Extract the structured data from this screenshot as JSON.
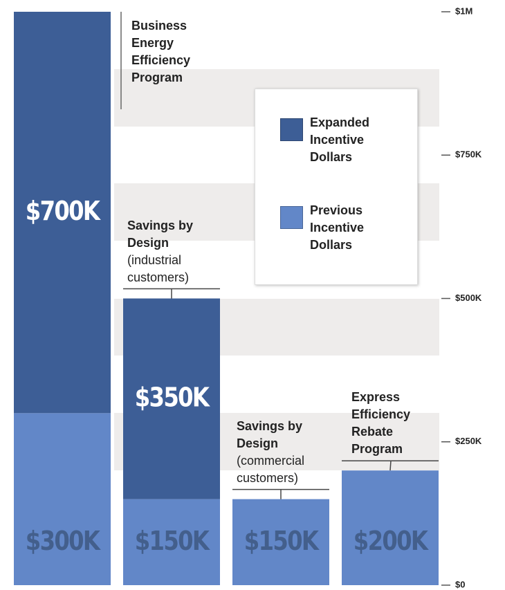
{
  "chart_data": {
    "type": "stacked-bar",
    "categories": [
      "Business Energy Efficiency Program",
      "Savings by Design",
      "Savings by Design",
      "Express Efficiency Rebate Program"
    ],
    "category_notes": [
      null,
      "(industrial customers)",
      "(commercial customers)",
      null
    ],
    "series": [
      {
        "name": "Previous Incentive Dollars",
        "color": "#6287c8",
        "values": [
          300000,
          150000,
          150000,
          200000
        ],
        "value_labels": [
          "$300K",
          "$150K",
          "$150K",
          "$200K"
        ]
      },
      {
        "name": "Expanded Incentive Dollars",
        "color": "#3d5e96",
        "values": [
          700000,
          350000,
          null,
          null
        ],
        "value_labels": [
          "$700K",
          "$350K",
          null,
          null
        ]
      }
    ],
    "ylim": [
      0,
      1000000
    ],
    "yticks": [
      {
        "value": 0,
        "label": "$0"
      },
      {
        "value": 250000,
        "label": "$250K"
      },
      {
        "value": 500000,
        "label": "$500K"
      },
      {
        "value": 750000,
        "label": "$750K"
      },
      {
        "value": 1000000,
        "label": "$1M"
      }
    ]
  }
}
